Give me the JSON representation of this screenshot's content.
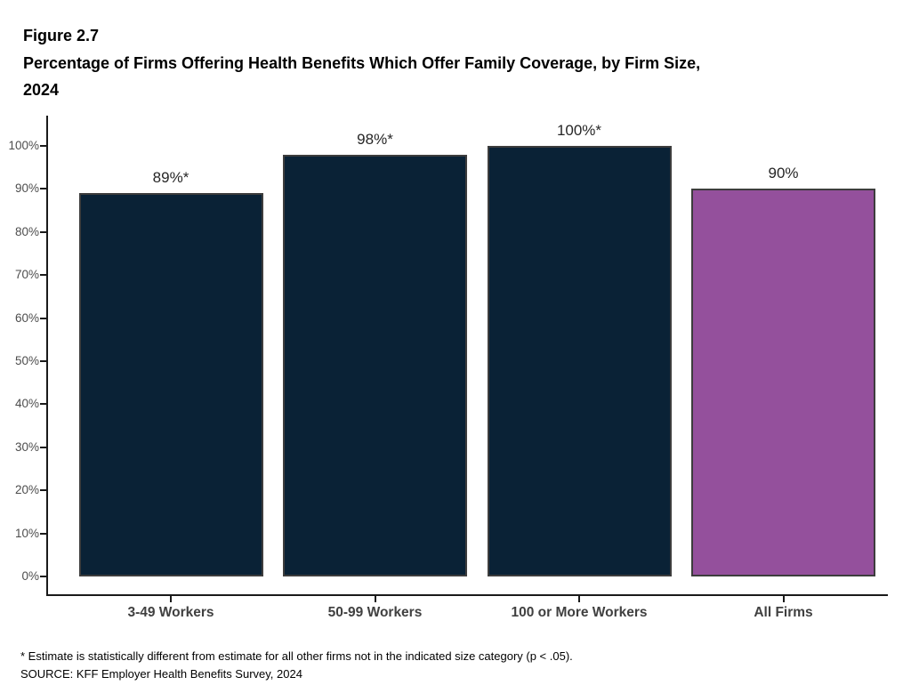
{
  "title": {
    "figure_label": "Figure 2.7",
    "line1": "Percentage of Firms Offering Health Benefits Which Offer Family Coverage, by Firm Size,",
    "line2": "2024"
  },
  "chart_data": {
    "type": "bar",
    "title": "Percentage of Firms Offering Health Benefits Which Offer Family Coverage, by Firm Size, 2024",
    "categories": [
      "3-49 Workers",
      "50-99 Workers",
      "100 or More Workers",
      "All Firms"
    ],
    "values": [
      89,
      98,
      100,
      90
    ],
    "bar_labels": [
      "89%*",
      "98%*",
      "100%*",
      "90%"
    ],
    "bar_colors": [
      "#0a2236",
      "#0a2236",
      "#0a2236",
      "#94509c"
    ],
    "bar_border_color": "#3d3d3d",
    "xlabel": "",
    "ylabel": "",
    "ylim": [
      0,
      100
    ],
    "y_tick_labels": [
      "0%",
      "10%",
      "20%",
      "30%",
      "40%",
      "50%",
      "60%",
      "70%",
      "80%",
      "90%",
      "100%"
    ],
    "grid": false,
    "legend": "none"
  },
  "footnotes": {
    "asterisk_note": "* Estimate is statistically different from estimate for all other firms not in the indicated size category (p < .05).",
    "source": "SOURCE: KFF Employer Health Benefits Survey, 2024"
  }
}
